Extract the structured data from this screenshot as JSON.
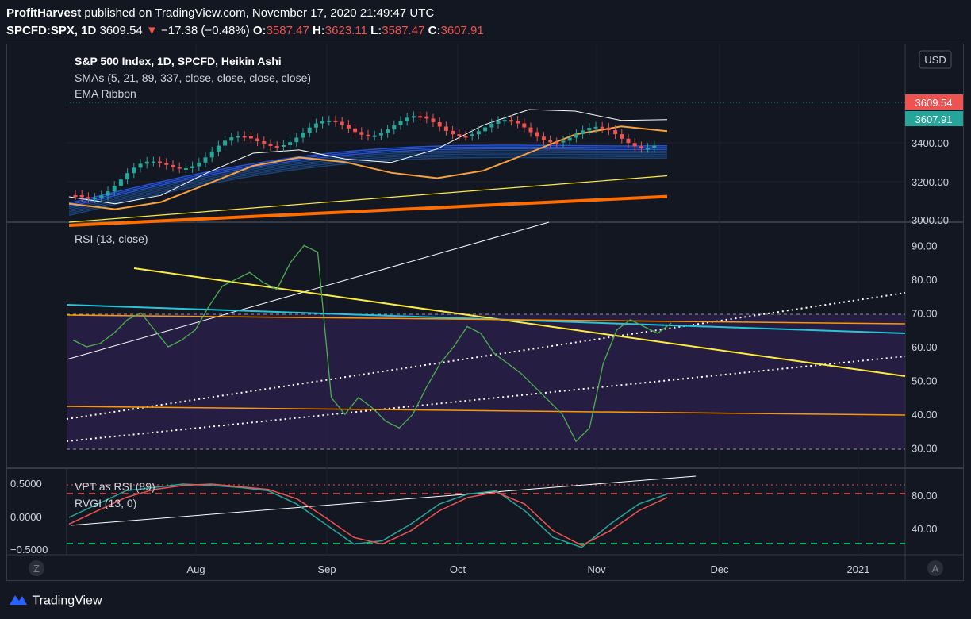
{
  "header": {
    "publisher": "ProfitHarvest",
    "published_text": "published on TradingView.com, November 17, 2020 21:49:47 UTC",
    "symbol": "SPCFD:SPX, 1D",
    "last": "3609.54",
    "change": "−17.38 (−0.48%)",
    "o_label": "O:",
    "o_val": "3587.47",
    "h_label": "H:",
    "h_val": "3623.11",
    "l_label": "L:",
    "l_val": "3587.47",
    "c_label": "C:",
    "c_val": "3607.91"
  },
  "colors": {
    "up": "#26a69a",
    "down": "#ef5350",
    "bg": "#131722",
    "grid": "#2a2e39"
  },
  "chart_data": [
    {
      "type": "candlestick",
      "title": "S&P 500 Index, 1D, SPCFD, Heikin Ashi",
      "indicators": [
        "SMAs (5, 21, 89, 337, close, close, close, close)",
        "EMA Ribbon"
      ],
      "currency": "USD",
      "y_ticks": [
        "3400.00",
        "3200.00",
        "3000.00"
      ],
      "ylim": [
        2995,
        3265
      ],
      "last_price": "3609.54",
      "close_price": "3607.91",
      "candles": [
        {
          "o": 3120,
          "h": 3140,
          "l": 3105,
          "c": 3130
        },
        {
          "o": 3128,
          "h": 3150,
          "l": 3118,
          "c": 3140
        },
        {
          "o": 3138,
          "h": 3160,
          "l": 3130,
          "c": 3150
        },
        {
          "o": 3145,
          "h": 3170,
          "l": 3140,
          "c": 3160
        },
        {
          "o": 3155,
          "h": 3185,
          "l": 3150,
          "c": 3175
        },
        {
          "o": 3170,
          "h": 3200,
          "l": 3160,
          "c": 3185
        },
        {
          "o": 3180,
          "h": 3200,
          "l": 3165,
          "c": 3190
        },
        {
          "o": 3190,
          "h": 3230,
          "l": 3180,
          "c": 3215
        },
        {
          "o": 3210,
          "h": 3240,
          "l": 3200,
          "c": 3228
        },
        {
          "o": 3225,
          "h": 3240,
          "l": 3210,
          "c": 3230
        },
        {
          "o": 3228,
          "h": 3245,
          "l": 3220,
          "c": 3238
        },
        {
          "o": 3236,
          "h": 3262,
          "l": 3230,
          "c": 3250
        },
        {
          "o": 3248,
          "h": 3265,
          "l": 3238,
          "c": 3254
        },
        {
          "o": 3250,
          "h": 3262,
          "l": 3232,
          "c": 3240
        }
      ],
      "lines": [
        {
          "name": "SMA 5",
          "color": "#ffffff",
          "y": [
            3120,
            3135,
            3148,
            3160,
            3172,
            3185,
            3192,
            3205,
            3220,
            3232,
            3240,
            3246,
            3250,
            3252
          ]
        },
        {
          "name": "SMA 21",
          "color": "#f7a23e",
          "y": [
            3108,
            3115,
            3122,
            3128,
            3135,
            3145,
            3152,
            3160,
            3170,
            3182,
            3192,
            3202,
            3210,
            3218
          ]
        },
        {
          "name": "SMA 89",
          "color": "#ffeb3b",
          "y": [
            3000,
            3010,
            3020,
            3035,
            3048,
            3060,
            3072,
            3085,
            3095,
            3105,
            3115,
            3125,
            3135,
            3145
          ]
        },
        {
          "name": "SMA 337",
          "color": "#ff6d00",
          "y": [
            2990,
            2995,
            3000,
            3005,
            3010,
            3015,
            3020,
            3025,
            3030,
            3035,
            3040,
            3045,
            3050,
            3055
          ]
        }
      ]
    },
    {
      "type": "line",
      "title": "RSI (13, close)",
      "y_ticks": [
        "90.00",
        "80.00",
        "70.00",
        "60.00",
        "50.00",
        "40.00",
        "30.00"
      ],
      "ylim": [
        25,
        95
      ],
      "bands": {
        "upper": 70,
        "lower": 30
      },
      "values": [
        62,
        60,
        61,
        64,
        68,
        70,
        65,
        60,
        62,
        65,
        72,
        78,
        80,
        82,
        79,
        77,
        85,
        90,
        88,
        45,
        40,
        45,
        42,
        38,
        36,
        40,
        48,
        55,
        60,
        66,
        64,
        58,
        55,
        52,
        48,
        44,
        40,
        32,
        36,
        55,
        65,
        68,
        66,
        64,
        67
      ]
    },
    {
      "type": "line",
      "title": "VPT as RSI (89)",
      "title2": "RVGI (13, 0)",
      "y_ticks_left": [
        "0.5000",
        "0.0000",
        "−0.5000"
      ],
      "y_ticks_right": [
        "80.00",
        "40.00"
      ],
      "series": [
        {
          "name": "RVGI",
          "color": "#26a69a",
          "values": [
            0.0,
            0.2,
            0.4,
            0.45,
            0.5,
            0.48,
            0.45,
            0.4,
            0.2,
            -0.1,
            -0.4,
            -0.35,
            -0.1,
            0.2,
            0.35,
            0.4,
            0.1,
            -0.3,
            -0.45,
            -0.1,
            0.2,
            0.35
          ]
        },
        {
          "name": "Signal",
          "color": "#ef5350",
          "values": [
            -0.1,
            0.1,
            0.3,
            0.42,
            0.48,
            0.5,
            0.46,
            0.42,
            0.28,
            0.0,
            -0.3,
            -0.4,
            -0.2,
            0.1,
            0.3,
            0.38,
            0.2,
            -0.2,
            -0.42,
            -0.2,
            0.1,
            0.3
          ]
        }
      ]
    }
  ],
  "time_axis": [
    "Aug",
    "Sep",
    "Oct",
    "Nov",
    "Dec",
    "2021"
  ],
  "corner_left": "Z",
  "corner_right": "A",
  "footer": {
    "brand": "TradingView"
  }
}
